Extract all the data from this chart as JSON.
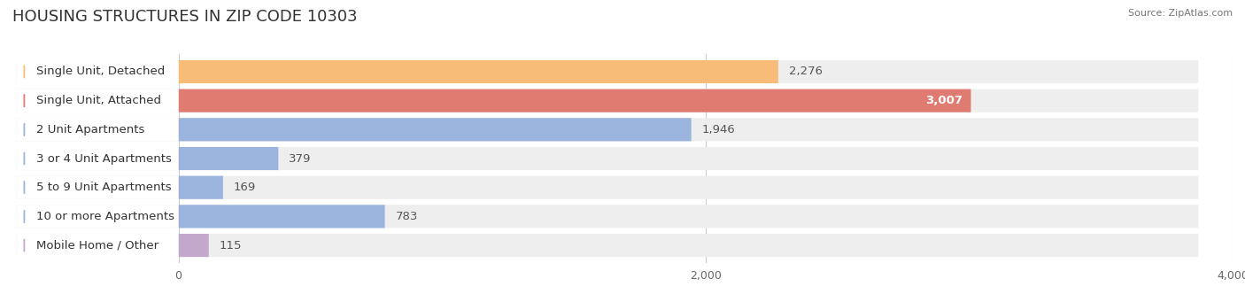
{
  "title": "HOUSING STRUCTURES IN ZIP CODE 10303",
  "source": "Source: ZipAtlas.com",
  "categories": [
    "Single Unit, Detached",
    "Single Unit, Attached",
    "2 Unit Apartments",
    "3 or 4 Unit Apartments",
    "5 to 9 Unit Apartments",
    "10 or more Apartments",
    "Mobile Home / Other"
  ],
  "values": [
    2276,
    3007,
    1946,
    379,
    169,
    783,
    115
  ],
  "bar_colors": [
    "#f6bc78",
    "#e07b72",
    "#9ab4dd",
    "#9ab4dd",
    "#9ab4dd",
    "#9ab4dd",
    "#c4a8cc"
  ],
  "value_inside": [
    false,
    true,
    false,
    false,
    false,
    false,
    false
  ],
  "xlim": [
    0,
    4300
  ],
  "xlim_display": [
    -200,
    4300
  ],
  "xticks": [
    0,
    2000,
    4000
  ],
  "background_color": "#ffffff",
  "row_bg_color": "#eeeeee",
  "label_bg_color": "#ffffff",
  "label_text_color": "#333333",
  "value_text_color_outside": "#555555",
  "value_text_color_inside": "#ffffff",
  "title_fontsize": 13,
  "label_fontsize": 9.5,
  "value_fontsize": 9.5,
  "tick_fontsize": 9,
  "source_fontsize": 8
}
